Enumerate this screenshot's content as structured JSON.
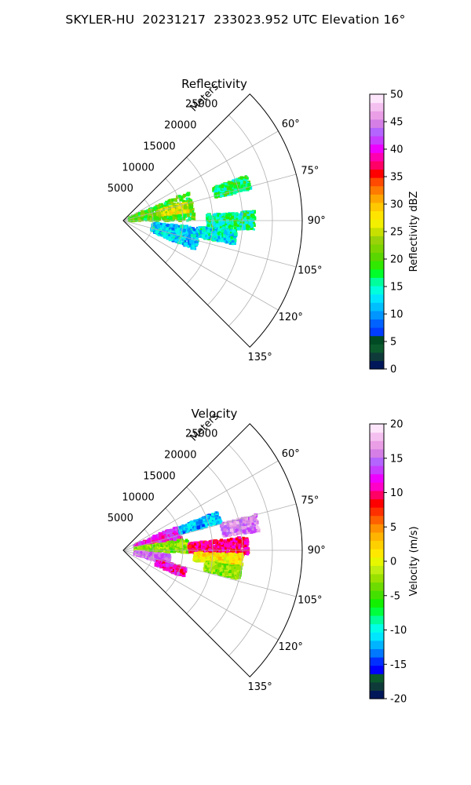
{
  "page_title": "SKYLER-HU  20231217  233023.952 UTC Elevation 16°",
  "panels": [
    {
      "title": "Reflectivity",
      "r_axis_label": "Meters",
      "colorbar_label": "Reflectivity dBZ",
      "colorbar_colors": [
        "#00175a",
        "#0f3a3a",
        "#0b5a2d",
        "#004b24",
        "#003dff",
        "#0062ff",
        "#0095ff",
        "#00bfff",
        "#00e5ff",
        "#00ffdc",
        "#00ff9c",
        "#00ff2a",
        "#30e800",
        "#5ad600",
        "#7cd500",
        "#9ad20a",
        "#c8e000",
        "#f2f000",
        "#ffe400",
        "#ffc800",
        "#ffa500",
        "#ff7a00",
        "#ff4a00",
        "#ff0000",
        "#ff0066",
        "#ff00b0",
        "#ee00ff",
        "#c83cff",
        "#b464ff",
        "#d47ee6",
        "#ea9ee6",
        "#f4c0f0",
        "#fde6fb"
      ]
    },
    {
      "title": "Velocity",
      "r_axis_label": "Meters",
      "colorbar_label": "Velocity (m/s)",
      "colorbar_colors": [
        "#00175a",
        "#0f3a3a",
        "#0b5a2d",
        "#0000ff",
        "#0030ff",
        "#0078ff",
        "#00b4ff",
        "#00e6ff",
        "#00ffe6",
        "#00ff9a",
        "#00ff3c",
        "#12f000",
        "#44e000",
        "#6edc00",
        "#9ae100",
        "#c0ee10",
        "#e6f700",
        "#ffe800",
        "#ffd000",
        "#ffb400",
        "#ff9000",
        "#ff6000",
        "#ff3000",
        "#ff0000",
        "#ff0064",
        "#ff00c8",
        "#ee00ff",
        "#c83cff",
        "#b464ff",
        "#d47ee6",
        "#ea9ee6",
        "#f4c0f0",
        "#fde6fb"
      ]
    }
  ],
  "chart_data": [
    {
      "type": "heatmap",
      "projection": "polar-sector",
      "title": "Reflectivity",
      "theta_range_deg": [
        45,
        135
      ],
      "theta_ticks": [
        "60°",
        "75°",
        "90°",
        "105°",
        "120°",
        "135°"
      ],
      "r_range_m": [
        0,
        30000
      ],
      "r_ticks": [
        "5000",
        "10000",
        "15000",
        "20000",
        "25000"
      ],
      "r_axis_label": "Meters",
      "grid": true,
      "colorbar": {
        "label": "Reflectivity dBZ",
        "range": [
          0,
          50
        ],
        "ticks": [
          "0",
          "5",
          "10",
          "15",
          "20",
          "25",
          "30",
          "35",
          "40",
          "45",
          "50"
        ]
      },
      "echo_regions": [
        {
          "theta_range_deg": [
            66,
            90
          ],
          "r_range_m": [
            1000,
            12000
          ],
          "value_dbz": 20
        },
        {
          "theta_range_deg": [
            74,
            82
          ],
          "r_range_m": [
            6000,
            11000
          ],
          "value_dbz": 26
        },
        {
          "theta_range_deg": [
            70,
            76
          ],
          "r_range_m": [
            16000,
            22000
          ],
          "value_dbz": 17
        },
        {
          "theta_range_deg": [
            86,
            94
          ],
          "r_range_m": [
            14000,
            22000
          ],
          "value_dbz": 16
        },
        {
          "theta_range_deg": [
            95,
            112
          ],
          "r_range_m": [
            5000,
            13000
          ],
          "value_dbz": 12
        },
        {
          "theta_range_deg": [
            95,
            102
          ],
          "r_range_m": [
            13000,
            19000
          ],
          "value_dbz": 14
        }
      ]
    },
    {
      "type": "heatmap",
      "projection": "polar-sector",
      "title": "Velocity",
      "theta_range_deg": [
        45,
        135
      ],
      "theta_ticks": [
        "60°",
        "75°",
        "90°",
        "105°",
        "120°",
        "135°"
      ],
      "r_range_m": [
        0,
        30000
      ],
      "r_ticks": [
        "5000",
        "10000",
        "15000",
        "20000",
        "25000"
      ],
      "r_axis_label": "Meters",
      "grid": true,
      "colorbar": {
        "label": "Velocity (m/s)",
        "range": [
          -20,
          20
        ],
        "ticks": [
          "-20",
          "-15",
          "-10",
          "-5",
          "0",
          "5",
          "10",
          "15",
          "20"
        ]
      },
      "echo_regions": [
        {
          "theta_range_deg": [
            66,
            80
          ],
          "r_range_m": [
            2000,
            10000
          ],
          "value_ms": 12
        },
        {
          "theta_range_deg": [
            80,
            92
          ],
          "r_range_m": [
            2000,
            11000
          ],
          "value_ms": -3
        },
        {
          "theta_range_deg": [
            68,
            74
          ],
          "r_range_m": [
            10000,
            17000
          ],
          "value_ms": -12
        },
        {
          "theta_range_deg": [
            75,
            82
          ],
          "r_range_m": [
            17000,
            23000
          ],
          "value_ms": 16
        },
        {
          "theta_range_deg": [
            84,
            92
          ],
          "r_range_m": [
            11000,
            21000
          ],
          "value_ms": 10
        },
        {
          "theta_range_deg": [
            92,
            98
          ],
          "r_range_m": [
            12000,
            20000
          ],
          "value_ms": 1
        },
        {
          "theta_range_deg": [
            96,
            108
          ],
          "r_range_m": [
            2000,
            8000
          ],
          "value_ms": 15
        },
        {
          "theta_range_deg": [
            106,
            114
          ],
          "r_range_m": [
            6000,
            11000
          ],
          "value_ms": 11
        },
        {
          "theta_range_deg": [
            98,
            104
          ],
          "r_range_m": [
            14000,
            20000
          ],
          "value_ms": -3
        }
      ]
    }
  ]
}
